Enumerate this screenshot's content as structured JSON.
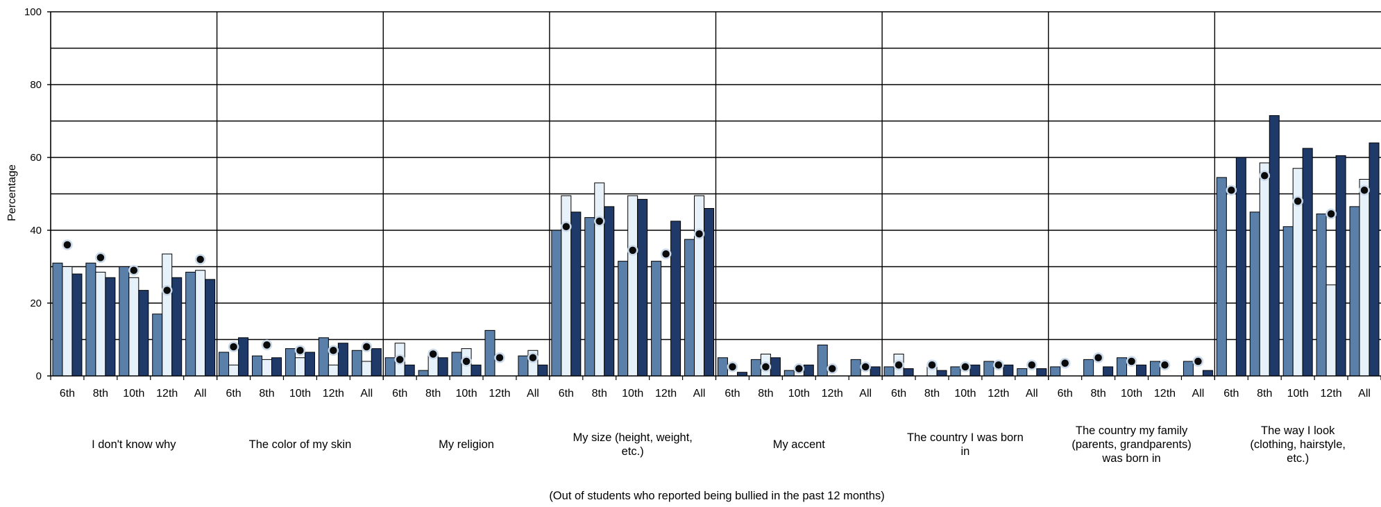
{
  "chart_data": {
    "type": "bar",
    "ylabel": "Percentage",
    "xlabel": "(Out of students who reported being bullied in the past 12 months)",
    "ylim": [
      0,
      100
    ],
    "yticks": [
      0,
      20,
      40,
      60,
      80,
      100
    ],
    "grid": true,
    "legend": "none",
    "grades": [
      "6th",
      "8th",
      "10th",
      "12th",
      "All"
    ],
    "colors": {
      "series1": "#5a7fa8",
      "series2": "#e6f1fa",
      "series3": "#1f3a68",
      "marker": "#0a0a0a"
    },
    "groups": [
      {
        "label": "I don't know why",
        "series1": [
          31,
          31,
          30,
          17,
          28.5
        ],
        "series2": [
          30,
          28.5,
          27,
          33.5,
          29
        ],
        "series3": [
          28,
          27,
          23.5,
          27,
          26.5
        ],
        "marker": [
          36,
          32.5,
          29,
          23.5,
          32
        ]
      },
      {
        "label": "The color of my skin",
        "series1": [
          6.5,
          5.5,
          7.5,
          10.5,
          7
        ],
        "series2": [
          3,
          4.5,
          5,
          3,
          4
        ],
        "series3": [
          10.5,
          5,
          6.5,
          9,
          7.5
        ],
        "marker": [
          8,
          8.5,
          7,
          7,
          8
        ]
      },
      {
        "label": "My religion",
        "series1": [
          5,
          1.5,
          6.5,
          12.5,
          5.5
        ],
        "series2": [
          9,
          6,
          7.5,
          0,
          7
        ],
        "series3": [
          3,
          5,
          3,
          0,
          3
        ],
        "marker": [
          4.5,
          6,
          4,
          5,
          5
        ]
      },
      {
        "label": "My size (height, weight, etc.)",
        "series1": [
          40,
          43.5,
          31.5,
          31.5,
          37.5
        ],
        "series2": [
          49.5,
          53,
          49.5,
          0,
          49.5
        ],
        "series3": [
          45,
          46.5,
          48.5,
          42.5,
          46
        ],
        "marker": [
          41,
          42.5,
          34.5,
          33.5,
          39
        ]
      },
      {
        "label": "My accent",
        "series1": [
          5,
          4.5,
          1.5,
          8.5,
          4.5
        ],
        "series2": [
          0,
          6,
          0,
          0,
          0
        ],
        "series3": [
          1,
          5,
          3,
          0,
          2.5
        ],
        "marker": [
          2.5,
          2.5,
          2,
          2,
          2.5
        ]
      },
      {
        "label": "The country I was born in",
        "series1": [
          2.5,
          0,
          2.5,
          4,
          2
        ],
        "series2": [
          6,
          2.5,
          0,
          0,
          0
        ],
        "series3": [
          2,
          1.5,
          3,
          3,
          2
        ],
        "marker": [
          3,
          3,
          2.5,
          3,
          3
        ]
      },
      {
        "label": "The country my family (parents, grandparents) was born in",
        "series1": [
          2.5,
          4.5,
          5,
          4,
          4
        ],
        "series2": [
          0,
          0,
          0,
          0,
          0
        ],
        "series3": [
          0,
          2.5,
          3,
          0,
          1.5
        ],
        "marker": [
          3.5,
          5,
          4,
          3,
          4
        ]
      },
      {
        "label": "The way I look (clothing, hairstyle, etc.)",
        "series1": [
          54.5,
          45,
          41,
          44.5,
          46.5
        ],
        "series2": [
          0,
          58.5,
          57,
          25,
          54
        ],
        "series3": [
          60,
          71.5,
          62.5,
          60.5,
          64
        ],
        "marker": [
          51,
          55,
          48,
          44.5,
          51
        ]
      }
    ]
  }
}
